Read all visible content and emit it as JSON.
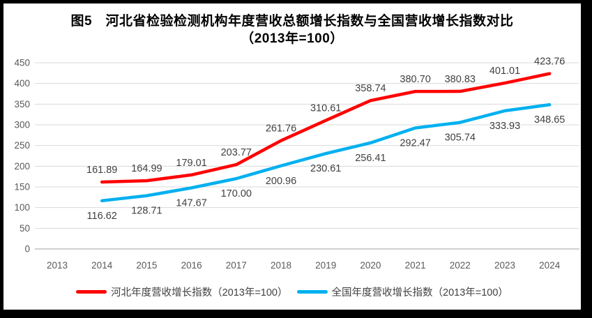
{
  "title": {
    "line1": "图5　河北省检验检测机构年度营收总额增长指数与全国营收增长指数对比",
    "line2": "（2013年=100）"
  },
  "chart_data": {
    "type": "line",
    "title": "图5 河北省检验检测机构年度营收总额增长指数与全国营收增长指数对比（2013年=100）",
    "categories": [
      2013,
      2014,
      2015,
      2016,
      2017,
      2018,
      2019,
      2020,
      2021,
      2022,
      2023,
      2024
    ],
    "series": [
      {
        "name": "河北年度营收增长指数（2013年=100）",
        "color": "#FF0000",
        "label_position": "above",
        "values": [
          null,
          161.89,
          164.99,
          179.01,
          203.77,
          261.76,
          310.61,
          358.74,
          380.7,
          380.83,
          401.01,
          423.76
        ]
      },
      {
        "name": "全国年度营收增长指数（2013年=100）",
        "color": "#00B0F0",
        "label_position": "below",
        "values": [
          null,
          116.62,
          128.71,
          147.67,
          170.0,
          200.96,
          230.61,
          256.41,
          292.47,
          305.74,
          333.93,
          348.65
        ]
      }
    ],
    "ylim": [
      0,
      450
    ],
    "ytick_step": 50,
    "yticks": [
      0,
      50,
      100,
      150,
      200,
      250,
      300,
      350,
      400,
      450
    ],
    "grid": true,
    "legend_position": "bottom",
    "data_labels_decimals": 2
  },
  "colors": {
    "hebei_line": "#FF0000",
    "national_line": "#00B0F0",
    "gridline": "#D9D9D9",
    "axis_line": "#BFBFBF",
    "tick_label": "#595959",
    "data_label": "#404040",
    "title_text": "#000000",
    "frame": "#000000",
    "background": "#FFFFFF"
  }
}
